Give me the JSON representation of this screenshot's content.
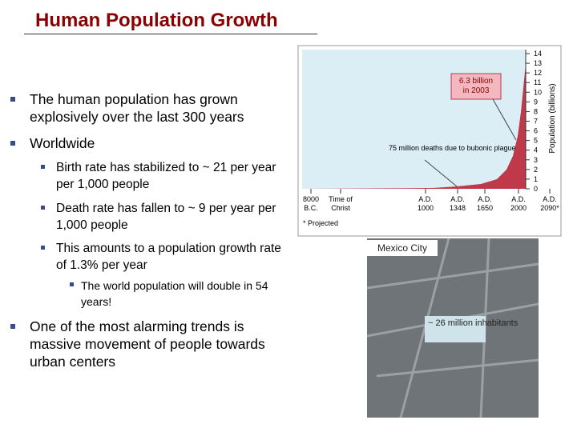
{
  "header": {
    "title": "Human Population Growth"
  },
  "bullets": [
    {
      "text": "The human population has grown explosively over the last 300 years"
    },
    {
      "text": "Worldwide",
      "items": [
        {
          "text": "Birth rate has stabilized to ~ 21 per year per 1,000 people"
        },
        {
          "text": "Death rate has fallen to ~ 9 per year per 1,000 people"
        },
        {
          "text": "This amounts to a population growth rate of 1.3% per year",
          "items": [
            {
              "text": "The world population will double in 54 years!"
            }
          ]
        }
      ]
    },
    {
      "text": "One of the most alarming trends is massive movement of people towards urban centers"
    }
  ],
  "figure": {
    "axis_label": "Population (billions)",
    "ticks": [
      0,
      1,
      2,
      3,
      4,
      5,
      6,
      7,
      8,
      9,
      10,
      11,
      12,
      13,
      14
    ],
    "callout": "6.3 billion in 2003",
    "plague_note": "75 million deaths due to bubonic plague",
    "x_labels": [
      "8000 B.C.",
      "Time of Christ",
      "A.D. 1000",
      "A.D. 1348",
      "A.D. 1650",
      "A.D. 2000",
      "A.D. 2090*"
    ],
    "footnote": "* Projected"
  },
  "photo": {
    "caption": "Mexico City",
    "note": "~ 26 million inhabitants"
  }
}
